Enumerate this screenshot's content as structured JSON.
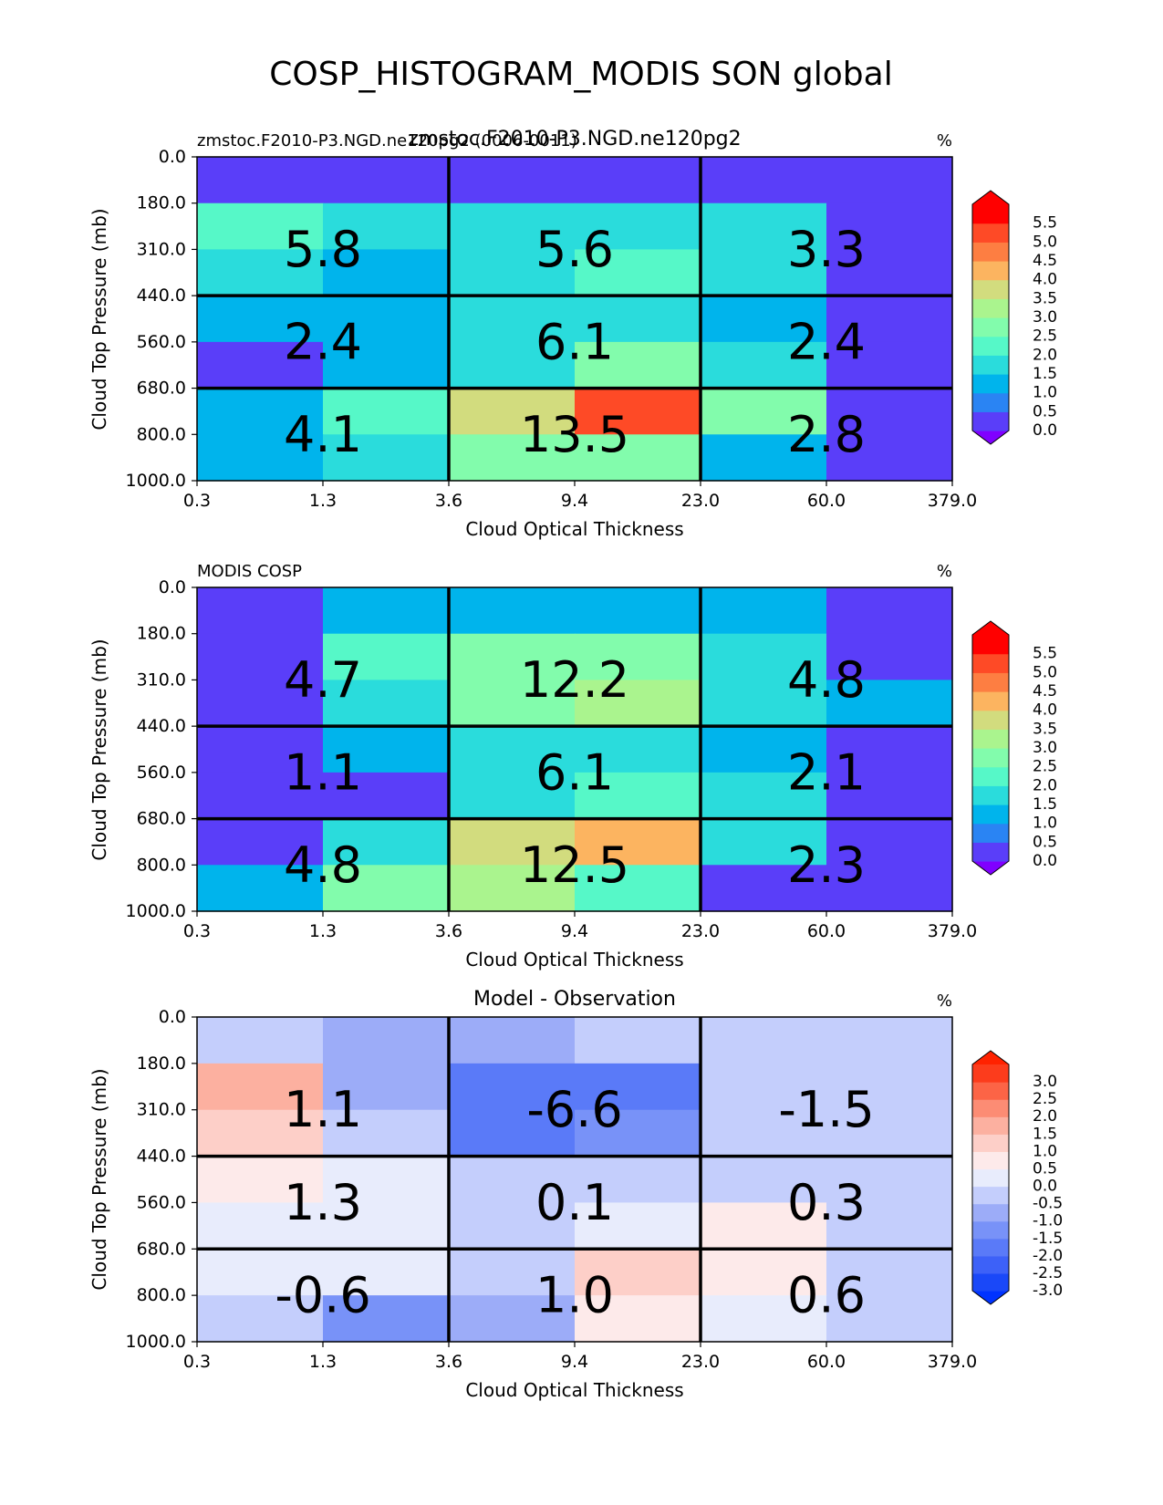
{
  "figure": {
    "title": "COSP_HISTOGRAM_MODIS SON global"
  },
  "chart_data": [
    {
      "type": "heatmap",
      "title": "zmstoc.F2010-P3.NGD.ne120pg2",
      "left_title": "zmstoc.F2010-P3.NGD.ne120pg2 (0006-0011)",
      "right_title": "%",
      "xlabel": "Cloud Optical Thickness",
      "ylabel": "Cloud Top Pressure (mb)",
      "x_ticks": [
        "0.3",
        "1.3",
        "3.6",
        "9.4",
        "23.0",
        "60.0",
        "379.0"
      ],
      "y_ticks": [
        "0.0",
        "180.0",
        "310.0",
        "440.0",
        "560.0",
        "680.0",
        "800.0",
        "1000.0"
      ],
      "cells": [
        [
          0.1,
          0.1,
          0.1,
          0.1,
          0.1,
          0.1
        ],
        [
          2.1,
          1.6,
          1.6,
          1.6,
          1.6,
          0.1
        ],
        [
          1.6,
          1.1,
          1.6,
          2.1,
          1.6,
          0.1
        ],
        [
          1.1,
          1.1,
          1.6,
          1.6,
          1.1,
          0.1
        ],
        [
          0.1,
          1.1,
          1.6,
          2.6,
          1.6,
          0.1
        ],
        [
          1.1,
          2.1,
          3.6,
          5.1,
          2.6,
          0.1
        ],
        [
          1.1,
          1.6,
          2.6,
          2.6,
          1.1,
          0.1
        ]
      ],
      "group_sums": [
        [
          "5.8",
          "5.6",
          "3.3"
        ],
        [
          "2.4",
          "6.1",
          "2.4"
        ],
        [
          "4.1",
          "13.5",
          "2.8"
        ]
      ],
      "colorbar": {
        "levels": [
          "0.0",
          "0.5",
          "1.0",
          "1.5",
          "2.0",
          "2.5",
          "3.0",
          "3.5",
          "4.0",
          "4.5",
          "5.0",
          "5.5"
        ],
        "colors": [
          "#5a3ef9",
          "#2a84f3",
          "#00b4ec",
          "#2adcdc",
          "#56f8c8",
          "#82fcac",
          "#aaf48e",
          "#d2dc7e",
          "#fcb460",
          "#fd7e42",
          "#fe4a26",
          "#ff0000"
        ],
        "under_color": "#8000ff",
        "over_color": "#ff0000"
      }
    },
    {
      "type": "heatmap",
      "title": "",
      "left_title": "MODIS COSP",
      "right_title": "%",
      "xlabel": "Cloud Optical Thickness",
      "ylabel": "Cloud Top Pressure (mb)",
      "x_ticks": [
        "0.3",
        "1.3",
        "3.6",
        "9.4",
        "23.0",
        "60.0",
        "379.0"
      ],
      "y_ticks": [
        "0.0",
        "180.0",
        "310.0",
        "440.0",
        "560.0",
        "680.0",
        "800.0",
        "1000.0"
      ],
      "cells": [
        [
          0.1,
          1.1,
          1.1,
          1.1,
          1.1,
          0.1
        ],
        [
          0.1,
          2.1,
          2.6,
          2.6,
          1.6,
          0.1
        ],
        [
          0.1,
          1.6,
          2.6,
          3.1,
          1.6,
          1.1
        ],
        [
          0.1,
          1.1,
          1.6,
          1.6,
          1.1,
          0.1
        ],
        [
          0.1,
          0.1,
          1.6,
          2.1,
          1.6,
          0.1
        ],
        [
          0.1,
          1.6,
          3.6,
          4.1,
          1.6,
          0.1
        ],
        [
          1.1,
          2.6,
          3.1,
          2.1,
          0.1,
          0.1
        ]
      ],
      "group_sums": [
        [
          "4.7",
          "12.2",
          "4.8"
        ],
        [
          "1.1",
          "6.1",
          "2.1"
        ],
        [
          "4.8",
          "12.5",
          "2.3"
        ]
      ],
      "colorbar": {
        "levels": [
          "0.0",
          "0.5",
          "1.0",
          "1.5",
          "2.0",
          "2.5",
          "3.0",
          "3.5",
          "4.0",
          "4.5",
          "5.0",
          "5.5"
        ],
        "colors": [
          "#5a3ef9",
          "#2a84f3",
          "#00b4ec",
          "#2adcdc",
          "#56f8c8",
          "#82fcac",
          "#aaf48e",
          "#d2dc7e",
          "#fcb460",
          "#fd7e42",
          "#fe4a26",
          "#ff0000"
        ],
        "under_color": "#8000ff",
        "over_color": "#ff0000"
      }
    },
    {
      "type": "heatmap",
      "title": "Model - Observation",
      "left_title": "",
      "right_title": "%",
      "xlabel": "Cloud Optical Thickness",
      "ylabel": "Cloud Top Pressure (mb)",
      "x_ticks": [
        "0.3",
        "1.3",
        "3.6",
        "9.4",
        "23.0",
        "60.0",
        "379.0"
      ],
      "y_ticks": [
        "0.0",
        "180.0",
        "310.0",
        "440.0",
        "560.0",
        "680.0",
        "800.0",
        "1000.0"
      ],
      "cells": [
        [
          -0.25,
          -0.75,
          -0.75,
          -0.25,
          -0.25,
          -0.25
        ],
        [
          1.75,
          -0.75,
          -1.75,
          -1.75,
          -0.25,
          -0.25
        ],
        [
          1.25,
          -0.25,
          -1.75,
          -1.25,
          -0.25,
          -0.25
        ],
        [
          0.75,
          0.25,
          -0.25,
          -0.25,
          -0.25,
          -0.25
        ],
        [
          0.25,
          0.25,
          -0.25,
          0.25,
          0.75,
          -0.25
        ],
        [
          0.25,
          0.25,
          -0.25,
          1.25,
          0.75,
          -0.25
        ],
        [
          -0.25,
          -1.25,
          -0.75,
          0.75,
          0.25,
          -0.25
        ]
      ],
      "group_sums": [
        [
          "1.1",
          "-6.6",
          "-1.5"
        ],
        [
          "1.3",
          "0.1",
          "0.3"
        ],
        [
          "-0.6",
          "1.0",
          "0.6"
        ]
      ],
      "colorbar": {
        "levels": [
          "-3.0",
          "-2.5",
          "-2.0",
          "-1.5",
          "-1.0",
          "-0.5",
          "0.0",
          "0.5",
          "1.0",
          "1.5",
          "2.0",
          "2.5",
          "3.0"
        ],
        "colors": [
          "#1a48f8",
          "#3d61f8",
          "#5a7af8",
          "#7892f8",
          "#9cacf8",
          "#c4cefc",
          "#e8ecfc",
          "#fdeaea",
          "#fdcfc8",
          "#fcb0a0",
          "#fc8c74",
          "#fc6446",
          "#fc3c1c"
        ],
        "under_color": "#0033ff",
        "over_color": "#ff2200"
      }
    }
  ]
}
